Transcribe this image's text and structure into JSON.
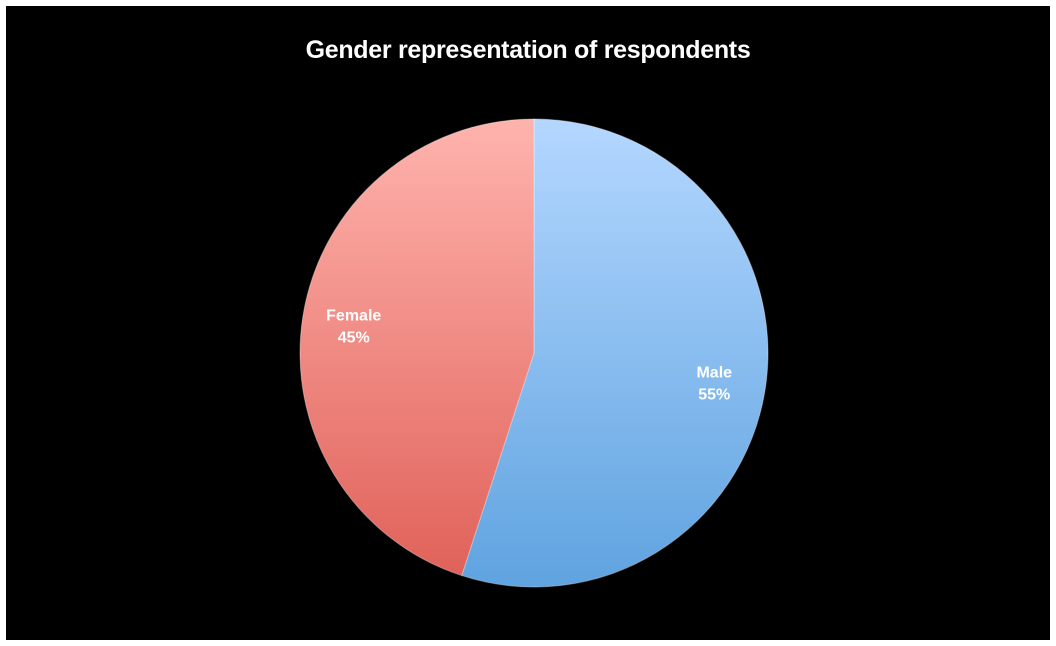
{
  "chart_data": {
    "type": "pie",
    "title": "Gender representation of respondents",
    "slices": [
      {
        "name": "Male",
        "value": 55,
        "label": "55%",
        "color": "#8fbff2"
      },
      {
        "name": "Female",
        "value": 45,
        "label": "45%",
        "color": "#f28c83"
      }
    ],
    "start_angle_deg": 0,
    "direction": "clockwise",
    "legend": "none",
    "background": "#000000"
  }
}
